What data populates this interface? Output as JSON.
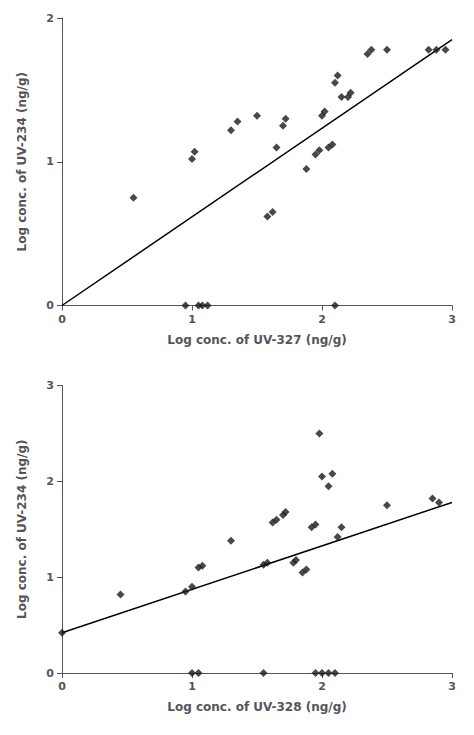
{
  "chart_data": [
    {
      "type": "scatter",
      "xlabel": "Log conc. of UV-327 (ng/g)",
      "ylabel": "Log conc. of UV-234 (ng/g)",
      "xlim": [
        0,
        3
      ],
      "ylim": [
        0,
        2
      ],
      "xticks": [
        0,
        1,
        2,
        3
      ],
      "yticks": [
        0,
        1,
        2
      ],
      "grid": false,
      "series": [
        {
          "type": "line",
          "color": "#000000",
          "line_style": "solid",
          "x": [
            0,
            3
          ],
          "values": [
            0,
            1.85
          ]
        },
        {
          "type": "scatter",
          "color": "#1a1a1a",
          "marker": "diamond",
          "x": [
            0.55,
            1.0,
            1.02,
            1.3,
            1.35,
            1.5,
            1.58,
            1.62,
            1.65,
            1.7,
            1.72,
            1.88,
            1.95,
            1.98,
            2.0,
            2.02,
            2.05,
            2.08,
            2.1,
            2.12,
            2.15,
            2.2,
            2.22,
            2.35,
            2.38,
            2.5,
            2.82,
            2.88,
            2.95,
            0.95,
            1.05,
            1.08,
            1.12,
            2.1
          ],
          "values": [
            0.75,
            1.02,
            1.07,
            1.22,
            1.28,
            1.32,
            0.62,
            0.65,
            1.1,
            1.25,
            1.3,
            0.95,
            1.05,
            1.08,
            1.32,
            1.35,
            1.1,
            1.12,
            1.55,
            1.6,
            1.45,
            1.45,
            1.48,
            1.75,
            1.78,
            1.78,
            1.78,
            1.78,
            1.78,
            0.0,
            0.0,
            0.0,
            0.0,
            0.0
          ]
        }
      ]
    },
    {
      "type": "scatter",
      "xlabel": "Log conc. of UV-328 (ng/g)",
      "ylabel": "Log conc. of UV-234 (ng/g)",
      "xlim": [
        0,
        3
      ],
      "ylim": [
        0,
        3
      ],
      "xticks": [
        0,
        1,
        2,
        3
      ],
      "yticks": [
        0,
        1,
        2,
        3
      ],
      "grid": false,
      "series": [
        {
          "type": "line",
          "color": "#000000",
          "line_style": "solid",
          "x": [
            0,
            3
          ],
          "values": [
            0.42,
            1.78
          ]
        },
        {
          "type": "scatter",
          "color": "#1a1a1a",
          "marker": "diamond",
          "x": [
            0.0,
            0.45,
            0.95,
            1.0,
            1.05,
            1.08,
            1.3,
            1.55,
            1.58,
            1.62,
            1.65,
            1.7,
            1.72,
            1.78,
            1.8,
            1.85,
            1.88,
            1.92,
            1.95,
            1.98,
            2.0,
            2.05,
            2.08,
            2.12,
            2.15,
            2.5,
            2.85,
            2.9,
            1.0,
            1.05,
            1.55,
            1.95,
            2.0,
            2.05,
            2.1
          ],
          "values": [
            0.42,
            0.82,
            0.85,
            0.9,
            1.1,
            1.12,
            1.38,
            1.13,
            1.15,
            1.57,
            1.6,
            1.65,
            1.68,
            1.15,
            1.18,
            1.05,
            1.08,
            1.52,
            1.55,
            2.5,
            2.05,
            1.95,
            2.08,
            1.42,
            1.52,
            1.75,
            1.82,
            1.78,
            0.0,
            0.0,
            0.0,
            0.0,
            0.0,
            0.0,
            0.0
          ]
        }
      ]
    }
  ]
}
